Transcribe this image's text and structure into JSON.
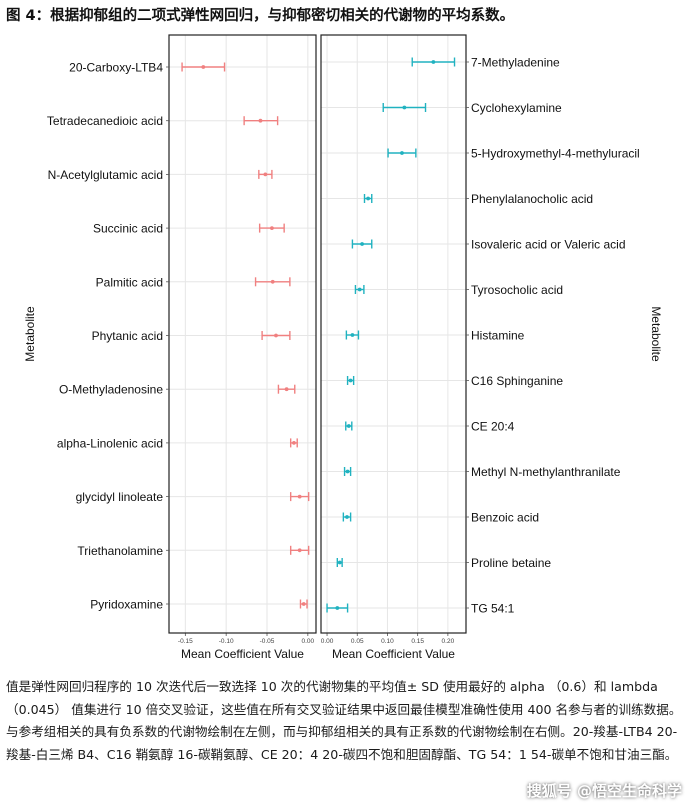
{
  "title": "图 4：根据抑郁组的二项式弹性网回归，与抑郁密切相关的代谢物的平均系数。",
  "caption": "值是弹性网回归程序的 10 次迭代后一致选择 10 次的代谢物集的平均值± SD 使用最好的 alpha （0.6）和 lambda （0.045） 值集进行 10 倍交叉验证，这些值在所有交叉验证结果中返回最佳模型准确性使用 400 名参与者的训练数据。与参考组相关的具有负系数的代谢物绘制在左侧，而与抑郁组相关的具有正系数的代谢物绘制在右侧。20-羧基-LTB4 20-羧基-白三烯 B4、C16 鞘氨醇 16-碳鞘氨醇、CE 20：4 20-碳四不饱和胆固醇酯、TG 54：1 54-碳单不饱和甘油三酯。",
  "watermark": "搜狐号 @悟空生命科学",
  "chart_data": [
    {
      "type": "scatter",
      "variant": "point-with-error-bars",
      "position": "left",
      "color": "#F08080",
      "xlabel": "Mean Coefficient Value",
      "ylabel": "Metabolite",
      "xlim": [
        -0.17,
        0.01
      ],
      "xticks": [
        -0.15,
        -0.1,
        -0.05,
        0.0
      ],
      "xtick_labels": [
        "-0.15",
        "-0.10",
        "-0.05",
        "0.00"
      ],
      "grid": true,
      "categories": [
        "20-Carboxy-LTB4",
        "Tetradecanedioic acid",
        "N-Acetylglutamic acid",
        "Succinic acid",
        "Palmitic acid",
        "Phytanic acid",
        "O-Methyladenosine",
        "alpha-Linolenic acid",
        "glycidyl linoleate",
        "Triethanolamine",
        "Pyridoxamine"
      ],
      "values": [
        -0.128,
        -0.058,
        -0.052,
        -0.044,
        -0.043,
        -0.039,
        -0.026,
        -0.017,
        -0.01,
        -0.01,
        -0.005
      ],
      "err_low": [
        -0.154,
        -0.078,
        -0.06,
        -0.059,
        -0.064,
        -0.056,
        -0.036,
        -0.021,
        -0.021,
        -0.021,
        -0.009
      ],
      "err_high": [
        -0.102,
        -0.037,
        -0.044,
        -0.029,
        -0.022,
        -0.022,
        -0.016,
        -0.013,
        0.001,
        0.001,
        -0.001
      ]
    },
    {
      "type": "scatter",
      "variant": "point-with-error-bars",
      "position": "right",
      "color": "#20B2C0",
      "xlabel": "Mean Coefficient Value",
      "ylabel": "Metabolite",
      "xlim": [
        -0.01,
        0.23
      ],
      "xticks": [
        0.0,
        0.05,
        0.1,
        0.15,
        0.2
      ],
      "xtick_labels": [
        "0.00",
        "0.05",
        "0.10",
        "0.15",
        "0.20"
      ],
      "grid": true,
      "categories": [
        "7-Methyladenine",
        "Cyclohexylamine",
        "5-Hydroxymethyl-4-methyluracil",
        "Phenylalanocholic acid",
        "Isovaleric acid or Valeric acid",
        "Tyrosocholic acid",
        "Histamine",
        "C16 Sphinganine",
        "CE 20:4",
        "Methyl N-methylanthranilate",
        "Benzoic acid",
        "Proline betaine",
        "TG 54:1"
      ],
      "values": [
        0.176,
        0.128,
        0.124,
        0.068,
        0.058,
        0.054,
        0.042,
        0.039,
        0.036,
        0.034,
        0.033,
        0.021,
        0.017
      ],
      "err_low": [
        0.141,
        0.093,
        0.101,
        0.062,
        0.042,
        0.047,
        0.032,
        0.034,
        0.031,
        0.029,
        0.027,
        0.017,
        0.0
      ],
      "err_high": [
        0.211,
        0.163,
        0.147,
        0.074,
        0.074,
        0.061,
        0.052,
        0.044,
        0.041,
        0.039,
        0.039,
        0.025,
        0.034
      ]
    }
  ]
}
